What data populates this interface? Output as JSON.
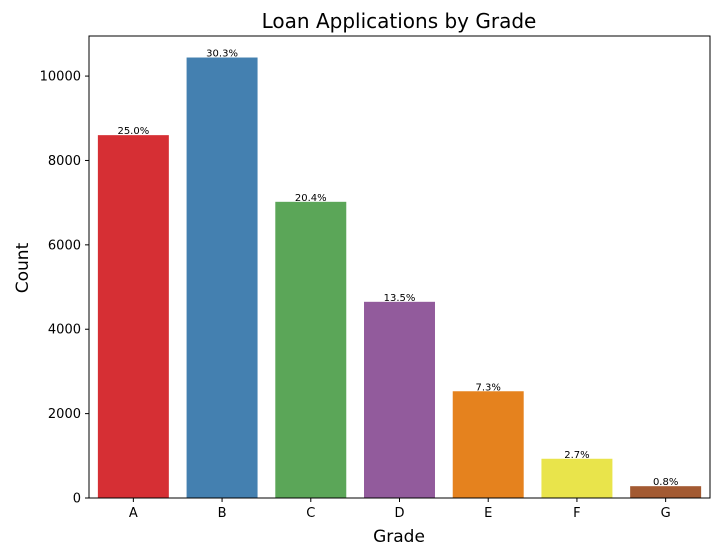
{
  "chart_data": {
    "type": "bar",
    "title": "Loan Applications by Grade",
    "xlabel": "Grade",
    "ylabel": "Count",
    "categories": [
      "A",
      "B",
      "C",
      "D",
      "E",
      "F",
      "G"
    ],
    "values": [
      8600,
      10440,
      7020,
      4650,
      2530,
      930,
      280
    ],
    "data_labels": [
      "25.0%",
      "30.3%",
      "20.4%",
      "13.5%",
      "7.3%",
      "2.7%",
      "0.8%"
    ],
    "colors": [
      "#d62f34",
      "#4480b0",
      "#5ba658",
      "#925b9c",
      "#e5821e",
      "#e9e44b",
      "#a35a32"
    ],
    "ylim": [
      0,
      10950
    ],
    "yticks": [
      0,
      2000,
      4000,
      6000,
      8000,
      10000
    ],
    "ytick_labels": [
      "0",
      "2000",
      "4000",
      "6000",
      "8000",
      "10000"
    ],
    "grid": false,
    "legend": "none"
  }
}
